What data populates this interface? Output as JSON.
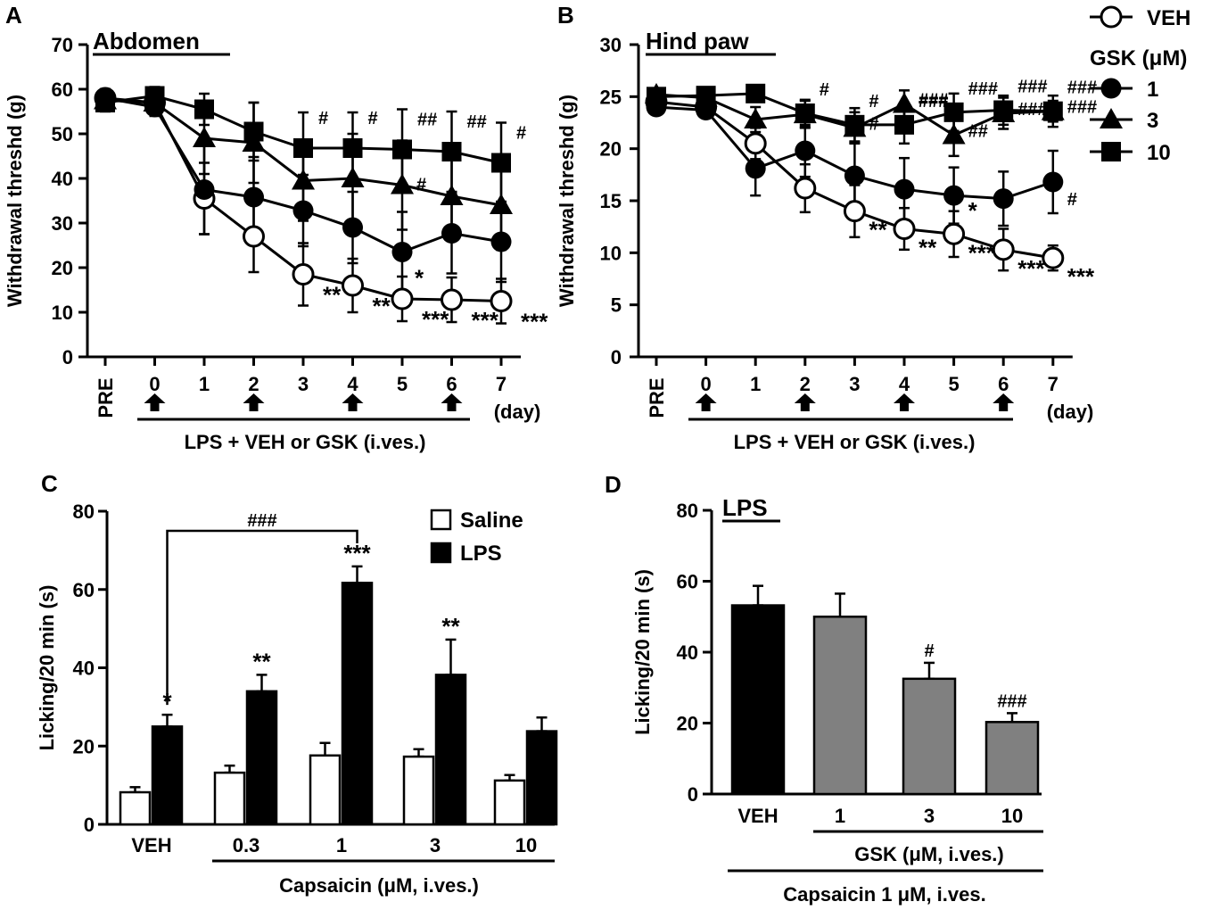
{
  "panel_labels": [
    "A",
    "B",
    "C",
    "D"
  ],
  "legend_ab": {
    "veh": "VEH",
    "gsk_title": "GSK (μM)",
    "doses": [
      "1",
      "3",
      "10"
    ]
  },
  "chart_data": [
    {
      "id": "A",
      "type": "line",
      "title": "Abdomen",
      "ylabel": "Withdrawal threshd (g)",
      "xlabel": "(day)",
      "ylim": [
        0,
        70
      ],
      "yticks": [
        0,
        10,
        20,
        30,
        40,
        50,
        60,
        70
      ],
      "categories": [
        "PRE",
        "0",
        "1",
        "2",
        "3",
        "4",
        "5",
        "6",
        "7"
      ],
      "arrow_days": [
        "0",
        "2",
        "4",
        "6"
      ],
      "treatment_label": "LPS + VEH or GSK (i.ves.)",
      "series": [
        {
          "name": "VEH",
          "marker": "open-circle",
          "values": [
            58,
            57,
            35.5,
            27,
            18.5,
            16,
            13,
            12.8,
            12.5
          ],
          "errors": [
            2,
            2,
            8,
            8,
            7,
            6,
            5,
            5,
            5
          ]
        },
        {
          "name": "GSK 1",
          "marker": "filled-circle",
          "values": [
            58,
            56,
            37.5,
            35.8,
            32.8,
            29,
            23.5,
            27.7,
            25.8
          ],
          "errors": [
            2,
            2,
            10,
            9,
            8,
            8,
            9,
            9,
            9
          ]
        },
        {
          "name": "GSK 3",
          "marker": "filled-triangle",
          "values": [
            57.5,
            57,
            49,
            48,
            39.5,
            40,
            38.5,
            36,
            34
          ],
          "errors": [
            2,
            2,
            8,
            9,
            9,
            10,
            10,
            10,
            10
          ]
        },
        {
          "name": "GSK 10",
          "marker": "filled-square",
          "values": [
            57,
            58.5,
            55.5,
            50.5,
            46.8,
            46.8,
            46.5,
            46,
            43.5
          ],
          "errors": [
            2,
            2,
            3.5,
            6.5,
            8,
            8,
            9,
            9,
            9
          ]
        }
      ],
      "annotations": [
        {
          "text": "**",
          "x": "3",
          "series": "VEH"
        },
        {
          "text": "**",
          "x": "4",
          "series": "VEH"
        },
        {
          "text": "***",
          "x": "5",
          "series": "VEH"
        },
        {
          "text": "***",
          "x": "6",
          "series": "VEH"
        },
        {
          "text": "***",
          "x": "7",
          "series": "VEH"
        },
        {
          "text": "*",
          "x": "5",
          "series": "GSK 1"
        },
        {
          "text": "#",
          "x": "5",
          "series": "GSK 3"
        },
        {
          "text": "#",
          "x": "3",
          "series": "GSK 10"
        },
        {
          "text": "#",
          "x": "4",
          "series": "GSK 10"
        },
        {
          "text": "##",
          "x": "5",
          "series": "GSK 10"
        },
        {
          "text": "##",
          "x": "6",
          "series": "GSK 10"
        },
        {
          "text": "#",
          "x": "7",
          "series": "GSK 10"
        }
      ]
    },
    {
      "id": "B",
      "type": "line",
      "title": "Hind paw",
      "ylabel": "Withdrawal threshd (g)",
      "xlabel": "(day)",
      "ylim": [
        0,
        30
      ],
      "yticks": [
        0,
        5,
        10,
        15,
        20,
        25,
        30
      ],
      "categories": [
        "PRE",
        "0",
        "1",
        "2",
        "3",
        "4",
        "5",
        "6",
        "7"
      ],
      "arrow_days": [
        "0",
        "2",
        "4",
        "6"
      ],
      "treatment_label": "LPS + VEH or GSK (i.ves.)",
      "series": [
        {
          "name": "VEH",
          "marker": "open-circle",
          "values": [
            24.5,
            24,
            20.5,
            16.2,
            14,
            12.3,
            11.8,
            10.3,
            9.5
          ],
          "errors": [
            0.5,
            0.6,
            1.5,
            2.3,
            2.5,
            2,
            2.2,
            2,
            1.2
          ]
        },
        {
          "name": "GSK 1",
          "marker": "filled-circle",
          "values": [
            24,
            23.7,
            18.1,
            19.8,
            17.4,
            16.1,
            15.5,
            15.2,
            16.8
          ],
          "errors": [
            0.5,
            0.6,
            2.6,
            2.5,
            3.2,
            3,
            2.7,
            2.6,
            3
          ]
        },
        {
          "name": "GSK 3",
          "marker": "filled-triangle",
          "values": [
            25.2,
            24.9,
            22.8,
            23.3,
            22,
            24.3,
            21.3,
            23.4,
            23.6
          ],
          "errors": [
            0.5,
            0.5,
            1.2,
            1.3,
            1.5,
            1.3,
            2,
            1.5,
            1
          ]
        },
        {
          "name": "GSK 10",
          "marker": "filled-square",
          "values": [
            25,
            25.1,
            25.3,
            23.4,
            22.3,
            22.3,
            23.5,
            23.7,
            23.6
          ],
          "errors": [
            0.5,
            0.5,
            0.5,
            1.3,
            1.6,
            1.8,
            1.8,
            1.4,
            1.5
          ]
        }
      ],
      "annotations": [
        {
          "text": "**",
          "x": "3",
          "series": "VEH"
        },
        {
          "text": "**",
          "x": "4",
          "series": "VEH"
        },
        {
          "text": "***",
          "x": "5",
          "series": "VEH"
        },
        {
          "text": "***",
          "x": "6",
          "series": "VEH"
        },
        {
          "text": "***",
          "x": "7",
          "series": "VEH"
        },
        {
          "text": "*",
          "x": "5",
          "series": "GSK 1"
        },
        {
          "text": "#",
          "x": "7",
          "series": "GSK 1"
        },
        {
          "text": "#",
          "x": "3",
          "series": "GSK 3"
        },
        {
          "text": "###",
          "x": "4",
          "series": "GSK 3"
        },
        {
          "text": "##",
          "x": "5",
          "series": "GSK 3"
        },
        {
          "text": "###",
          "x": "6",
          "series": "GSK 3"
        },
        {
          "text": "###",
          "x": "7",
          "series": "GSK 3"
        },
        {
          "text": "#",
          "x": "2",
          "series": "GSK 10"
        },
        {
          "text": "#",
          "x": "3",
          "series": "GSK 10"
        },
        {
          "text": "###",
          "x": "4",
          "series": "GSK 10"
        },
        {
          "text": "###",
          "x": "5",
          "series": "GSK 10"
        },
        {
          "text": "###",
          "x": "6",
          "series": "GSK 10"
        },
        {
          "text": "###",
          "x": "7",
          "series": "GSK 10"
        }
      ]
    },
    {
      "id": "C",
      "type": "bar",
      "title": "",
      "ylabel": "Licking/20 min (s)",
      "ylim": [
        0,
        80
      ],
      "yticks": [
        0,
        20,
        40,
        60,
        80
      ],
      "categories": [
        "VEH",
        "0.3",
        "1",
        "3",
        "10"
      ],
      "group_label": "Capsaicin (μM, i.ves.)",
      "series": [
        {
          "name": "Saline",
          "color": "#ffffff",
          "values": [
            8.2,
            13.2,
            17.6,
            17.3,
            11.2
          ],
          "errors": [
            1.3,
            1.8,
            3.2,
            1.9,
            1.4
          ]
        },
        {
          "name": "LPS",
          "color": "#000000",
          "values": [
            25,
            34,
            61.7,
            38.2,
            23.8
          ],
          "errors": [
            3,
            4.2,
            4.2,
            9,
            3.5
          ]
        }
      ],
      "bar_annotations": [
        {
          "category": "VEH",
          "series": "LPS",
          "text": "*"
        },
        {
          "category": "0.3",
          "series": "LPS",
          "text": "**"
        },
        {
          "category": "1",
          "series": "LPS",
          "text": "***"
        },
        {
          "category": "3",
          "series": "LPS",
          "text": "**"
        }
      ],
      "bracket": {
        "from": "VEH",
        "to": "1",
        "text": "###"
      }
    },
    {
      "id": "D",
      "type": "bar",
      "title": "LPS",
      "ylabel": "Licking/20 min (s)",
      "ylim": [
        0,
        80
      ],
      "yticks": [
        0,
        20,
        40,
        60,
        80
      ],
      "categories": [
        "VEH",
        "1",
        "3",
        "10"
      ],
      "values": [
        53.2,
        50,
        32.5,
        20.3
      ],
      "errors": [
        5.5,
        6.5,
        4.5,
        2.5
      ],
      "colors": [
        "#000000",
        "#808080",
        "#808080",
        "#808080"
      ],
      "bar_annotations": [
        {
          "category": "3",
          "text": "#"
        },
        {
          "category": "10",
          "text": "###"
        }
      ],
      "group_label": "GSK (μM, i.ves.)",
      "outer_label": "Capsaicin 1 μM, i.ves."
    }
  ]
}
